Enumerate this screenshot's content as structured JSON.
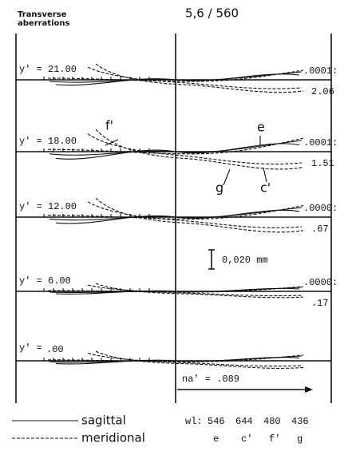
{
  "header": {
    "caption_lines": [
      "Transverse",
      "aberrations"
    ],
    "title": "5,6 / 560"
  },
  "rows": [
    {
      "label": "y' = 21.00",
      "scale": ".0001:",
      "value": "2.06"
    },
    {
      "label": "y' = 18.00",
      "scale": ".0001:",
      "value": "1.51"
    },
    {
      "label": "y' = 12.00",
      "scale": ".0000:",
      "value": ".67"
    },
    {
      "label": "y' = 6.00",
      "scale": ".0000:",
      "value": ".17"
    },
    {
      "label": "y' =",
      "value": ".00"
    }
  ],
  "curve_labels": [
    "f'",
    "e",
    "g",
    "c'"
  ],
  "scale_bar": "0,020 mm",
  "aperture": "na' = .089",
  "legend": [
    "sagittal",
    "meridional"
  ],
  "wavelengths": {
    "label": "wl:",
    "values": [
      "546",
      "644",
      "480",
      "436"
    ],
    "names": [
      "e",
      "c'",
      "f'",
      "g"
    ]
  }
}
